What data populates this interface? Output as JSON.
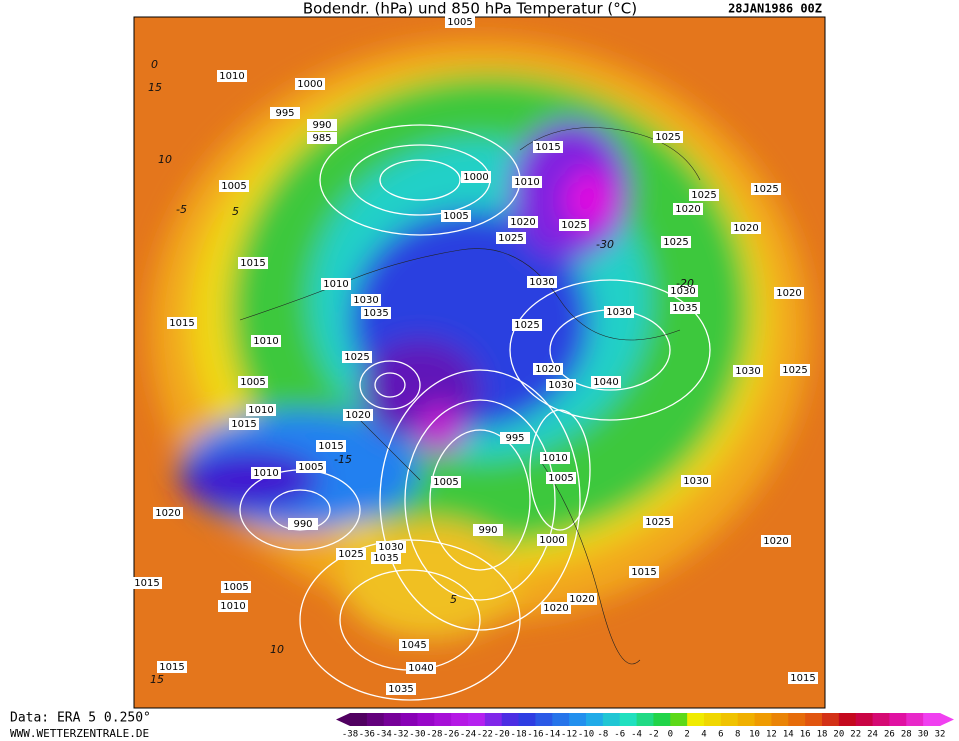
{
  "header": {
    "title": "Bodendr. (hPa) und 850 hPa Temperatur (°C)",
    "date": "28JAN1986 00Z"
  },
  "footer": {
    "source": "Data: ERA 5 0.250°",
    "website": "WWW.WETTERZENTRALE.DE"
  },
  "legend": {
    "ticks": [
      -38,
      -36,
      -34,
      -32,
      -30,
      -28,
      -26,
      -24,
      -22,
      -20,
      -18,
      -16,
      -14,
      -12,
      -10,
      -8,
      -6,
      -4,
      -2,
      0,
      2,
      4,
      6,
      8,
      10,
      12,
      14,
      16,
      18,
      20,
      22,
      24,
      26,
      28,
      30,
      32
    ]
  },
  "isobar_labels": [
    "1005",
    "1010",
    "1000",
    "995",
    "990",
    "985",
    "1015",
    "1025",
    "1005",
    "1000",
    "1010",
    "1005",
    "1020",
    "1025",
    "1025",
    "1025",
    "1020",
    "1025",
    "1025",
    "1020",
    "1015",
    "1010",
    "1030",
    "1035",
    "1030",
    "1030",
    "1035",
    "1020",
    "1030",
    "1025",
    "1015",
    "1010",
    "1025",
    "1020",
    "1030",
    "1040",
    "1030",
    "1025",
    "1005",
    "1010",
    "1015",
    "1020",
    "995",
    "1015",
    "1010",
    "1005",
    "1010",
    "1005",
    "1030",
    "1005",
    "1020",
    "990",
    "990",
    "1000",
    "1025",
    "1025",
    "1030",
    "1035",
    "1015",
    "1020",
    "1005",
    "1010",
    "1015",
    "1020",
    "1020",
    "1045",
    "1040",
    "1015",
    "1035",
    "1015"
  ],
  "isotherm_labels": [
    "15",
    "10",
    "5",
    "0",
    "-5",
    "-15",
    "-30",
    "-20",
    "15",
    "10",
    "5"
  ]
}
